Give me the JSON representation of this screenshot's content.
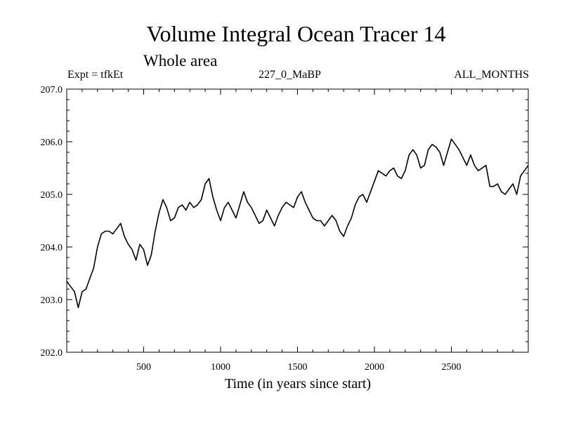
{
  "header": {
    "title": "Volume Integral Ocean Tracer 14",
    "subtitle": "Whole area",
    "expt": "Expt = tfkEt",
    "run_id": "227_0_MaBP",
    "months": "ALL_MONTHS"
  },
  "chart_data": {
    "type": "line",
    "title": "Volume Integral Ocean Tracer 14",
    "xlabel": "Time (in years since start)",
    "ylabel": "",
    "xlim": [
      0,
      3000
    ],
    "ylim": [
      202.0,
      207.0
    ],
    "xticks": [
      500,
      1000,
      1500,
      2000,
      2500
    ],
    "yticks": [
      202.0,
      203.0,
      204.0,
      205.0,
      206.0,
      207.0
    ],
    "grid": false,
    "series": [
      {
        "color": "#000000",
        "x": [
          0,
          25,
          50,
          75,
          100,
          125,
          150,
          175,
          200,
          225,
          250,
          275,
          300,
          325,
          350,
          375,
          400,
          425,
          450,
          475,
          500,
          525,
          550,
          575,
          600,
          625,
          650,
          675,
          700,
          725,
          750,
          775,
          800,
          825,
          850,
          875,
          900,
          925,
          950,
          975,
          1000,
          1025,
          1050,
          1075,
          1100,
          1125,
          1150,
          1175,
          1200,
          1225,
          1250,
          1275,
          1300,
          1325,
          1350,
          1375,
          1400,
          1425,
          1450,
          1475,
          1500,
          1525,
          1550,
          1575,
          1600,
          1625,
          1650,
          1675,
          1700,
          1725,
          1750,
          1775,
          1800,
          1825,
          1850,
          1875,
          1900,
          1925,
          1950,
          1975,
          2000,
          2025,
          2050,
          2075,
          2100,
          2125,
          2150,
          2175,
          2200,
          2225,
          2250,
          2275,
          2300,
          2325,
          2350,
          2375,
          2400,
          2425,
          2450,
          2475,
          2500,
          2525,
          2550,
          2575,
          2600,
          2625,
          2650,
          2675,
          2700,
          2725,
          2750,
          2775,
          2800,
          2825,
          2850,
          2875,
          2900,
          2925,
          2950,
          2975,
          3000
        ],
        "values": [
          203.35,
          203.25,
          203.15,
          202.85,
          203.15,
          203.2,
          203.4,
          203.6,
          204.0,
          204.25,
          204.3,
          204.3,
          204.25,
          204.35,
          204.45,
          204.2,
          204.05,
          203.95,
          203.75,
          204.05,
          203.95,
          203.65,
          203.85,
          204.3,
          204.65,
          204.9,
          204.75,
          204.5,
          204.55,
          204.75,
          204.8,
          204.7,
          204.85,
          204.75,
          204.8,
          204.9,
          205.2,
          205.3,
          204.95,
          204.7,
          204.5,
          204.75,
          204.85,
          204.7,
          204.55,
          204.8,
          205.05,
          204.85,
          204.75,
          204.6,
          204.45,
          204.5,
          204.7,
          204.55,
          204.4,
          204.6,
          204.75,
          204.85,
          204.8,
          204.75,
          204.95,
          205.05,
          204.85,
          204.7,
          204.55,
          204.5,
          204.5,
          204.4,
          204.5,
          204.6,
          204.5,
          204.3,
          204.2,
          204.4,
          204.55,
          204.8,
          204.95,
          205.0,
          204.85,
          205.05,
          205.25,
          205.45,
          205.4,
          205.35,
          205.45,
          205.5,
          205.35,
          205.3,
          205.45,
          205.75,
          205.85,
          205.75,
          205.5,
          205.55,
          205.85,
          205.95,
          205.9,
          205.8,
          205.55,
          205.8,
          206.05,
          205.95,
          205.85,
          205.7,
          205.55,
          205.75,
          205.55,
          205.45,
          205.5,
          205.55,
          205.15,
          205.15,
          205.2,
          205.05,
          205.0,
          205.1,
          205.2,
          205.0,
          205.35,
          205.45,
          205.55
        ]
      }
    ]
  }
}
